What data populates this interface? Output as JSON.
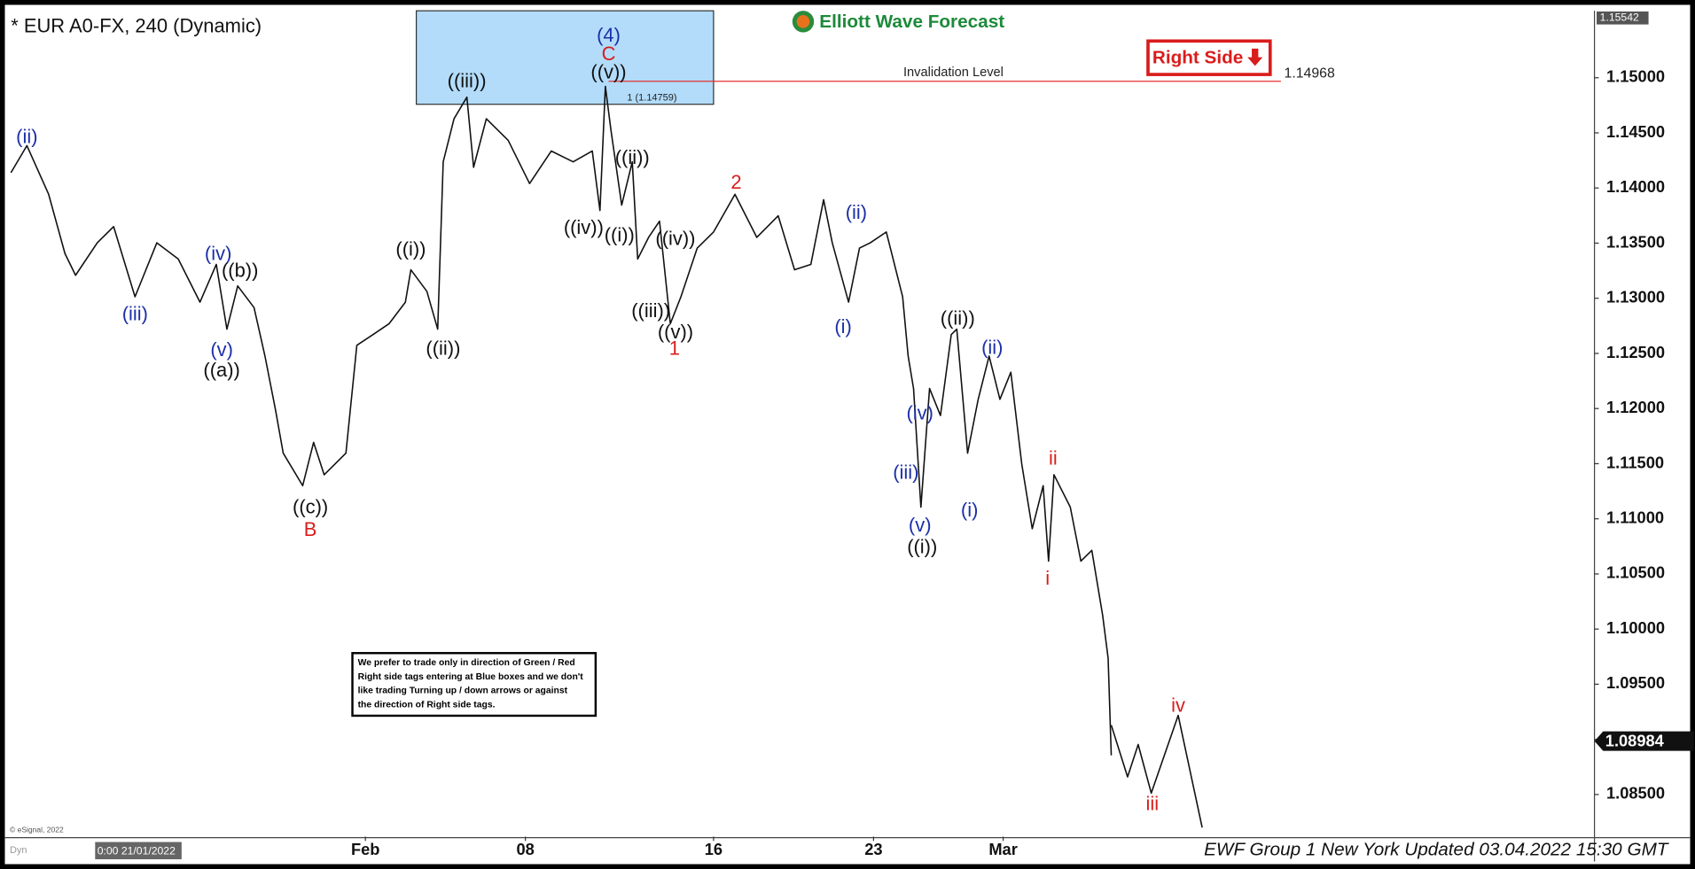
{
  "chart_data": {
    "type": "line",
    "title": "* EUR A0-FX, 240 (Dynamic)",
    "logo": "Elliott Wave Forecast",
    "right_side_tag": "Right Side",
    "footer": "EWF Group 1 New York Updated 03.04.2022 15:30 GMT",
    "copyright": "© eSignal, 2022",
    "cursor_time": "0:00 21/01/2022",
    "corner_label": "Dyn",
    "note": [
      "We prefer to trade only in direction of Green / Red",
      "Right side tags entering at Blue boxes and we don't",
      "like trading Turning up / down arrows or against",
      "the direction of Right side tags."
    ],
    "xlim": [
      0,
      49.56
    ],
    "xticks": [
      {
        "value": 11.15,
        "label": "Feb"
      },
      {
        "value": 16.15,
        "label": "08"
      },
      {
        "value": 22.03,
        "label": "16"
      },
      {
        "value": 27.03,
        "label": "23"
      },
      {
        "value": 31.08,
        "label": "Mar"
      }
    ],
    "ylim": [
      1.08118,
      1.15607
    ],
    "yticks": [
      {
        "value": 1.085,
        "label": "1.08500"
      },
      {
        "value": 1.09,
        "label": "1.09000"
      },
      {
        "value": 1.095,
        "label": "1.09500"
      },
      {
        "value": 1.1,
        "label": "1.10000"
      },
      {
        "value": 1.105,
        "label": "1.10500"
      },
      {
        "value": 1.11,
        "label": "1.11000"
      },
      {
        "value": 1.115,
        "label": "1.11500"
      },
      {
        "value": 1.12,
        "label": "1.12000"
      },
      {
        "value": 1.125,
        "label": "1.12500"
      },
      {
        "value": 1.13,
        "label": "1.13000"
      },
      {
        "value": 1.135,
        "label": "1.13500"
      },
      {
        "value": 1.14,
        "label": "1.14000"
      },
      {
        "value": 1.145,
        "label": "1.14500"
      },
      {
        "value": 1.15,
        "label": "1.15000"
      }
    ],
    "top_price": 1.15542,
    "last_price": 1.08984,
    "blue_box": {
      "x": [
        12.74,
        22.03
      ],
      "y": [
        1.14759,
        1.15607
      ],
      "color": "#b3dcfa",
      "label": "1 (1.14759)"
    },
    "invalidation": {
      "label": "Invalidation Level",
      "value": 1.14968,
      "x": [
        18.75,
        39.76
      ],
      "color": "#e03030"
    },
    "series": [
      {
        "color": "#111111",
        "x": [
          0.07,
          0.57,
          1.25,
          1.76,
          2.09,
          2.77,
          3.28,
          3.95,
          4.63,
          5.3,
          5.98,
          6.49,
          6.82,
          7.16,
          7.67,
          8.01,
          8.34,
          8.58,
          9.19,
          9.53,
          9.86,
          10.54,
          10.88,
          11.39,
          11.89,
          12.4,
          12.57,
          13.07,
          13.41,
          13.58,
          13.92,
          14.32,
          14.53,
          14.93,
          15.61,
          16.28,
          16.96,
          17.64,
          18.24,
          18.48,
          18.65,
          18.82,
          19.16,
          19.49,
          19.66,
          20.0,
          20.34,
          20.68,
          21.01,
          21.52,
          22.03,
          22.7,
          23.38,
          24.05,
          24.56,
          25.07,
          25.47,
          25.74,
          26.25,
          26.59,
          26.93,
          27.43,
          27.94,
          28.11,
          28.28,
          28.51,
          28.78,
          29.12,
          29.46,
          29.63,
          29.97,
          30.3,
          30.64,
          30.98,
          31.32,
          31.66,
          31.99,
          32.33,
          32.5,
          32.67,
          33.18,
          33.51,
          33.85,
          34.19,
          34.36,
          34.46
        ],
        "values": [
          1.14139,
          1.14384,
          1.13943,
          1.13405,
          1.13209,
          1.13503,
          1.1365,
          1.13014,
          1.13503,
          1.13356,
          1.12965,
          1.13307,
          1.1272,
          1.13112,
          1.12916,
          1.12476,
          1.11986,
          1.11595,
          1.11301,
          1.11693,
          1.11399,
          1.11595,
          1.12573,
          1.12671,
          1.12769,
          1.12965,
          1.13258,
          1.13063,
          1.1272,
          1.14237,
          1.14628,
          1.14824,
          1.14188,
          1.14628,
          1.14432,
          1.14041,
          1.14335,
          1.14237,
          1.14335,
          1.13796,
          1.14922,
          1.1453,
          1.13845,
          1.14237,
          1.13356,
          1.13552,
          1.13699,
          1.12769,
          1.13014,
          1.13455,
          1.13601,
          1.13943,
          1.13552,
          1.13748,
          1.13258,
          1.13307,
          1.13894,
          1.13503,
          1.12965,
          1.13455,
          1.13503,
          1.13601,
          1.13014,
          1.12476,
          1.12182,
          1.11106,
          1.12182,
          1.11937,
          1.12671,
          1.1272,
          1.11595,
          1.12084,
          1.12476,
          1.12084,
          1.12329,
          1.11497,
          1.1091,
          1.11301,
          1.10616,
          1.11399,
          1.11106,
          1.10616,
          1.10714,
          1.10127,
          1.09736,
          1.08855
        ]
      },
      {
        "color": "#111111",
        "x": [
          34.46,
          34.97,
          35.3,
          35.71,
          36.55,
          37.3
        ],
        "values": [
          1.09129,
          1.08659,
          1.08953,
          1.08513,
          1.09217,
          1.082
        ]
      }
    ],
    "wave_labels": [
      {
        "text": "(ii)",
        "x": 0.57,
        "y": 1.14452,
        "color": "#1c2fa8"
      },
      {
        "text": "(iii)",
        "x": 3.95,
        "y": 1.12847,
        "color": "#1c2fa8"
      },
      {
        "text": "(iv)",
        "x": 6.55,
        "y": 1.13395,
        "color": "#1c2fa8"
      },
      {
        "text": "((b))",
        "x": 7.23,
        "y": 1.13239,
        "color": "#111111"
      },
      {
        "text": "(v)",
        "x": 6.66,
        "y": 1.12524,
        "color": "#1c2fa8"
      },
      {
        "text": "((a))",
        "x": 6.66,
        "y": 1.12339,
        "color": "#111111"
      },
      {
        "text": "((c))",
        "x": 9.43,
        "y": 1.11096,
        "color": "#111111"
      },
      {
        "text": "B",
        "x": 9.43,
        "y": 1.1089,
        "color": "#d91c1c"
      },
      {
        "text": "((i))",
        "x": 12.57,
        "y": 1.13434,
        "color": "#111111"
      },
      {
        "text": "((ii))",
        "x": 13.58,
        "y": 1.12534,
        "color": "#111111"
      },
      {
        "text": "((iii))",
        "x": 14.32,
        "y": 1.14961,
        "color": "#111111"
      },
      {
        "text": "(4)",
        "x": 18.75,
        "y": 1.15372,
        "color": "#1c2fa8"
      },
      {
        "text": "C",
        "x": 18.75,
        "y": 1.15205,
        "color": "#d91c1c"
      },
      {
        "text": "((v))",
        "x": 18.75,
        "y": 1.15039,
        "color": "#111111"
      },
      {
        "text": "((ii))",
        "x": 19.49,
        "y": 1.14266,
        "color": "#111111"
      },
      {
        "text": "((iv))",
        "x": 17.97,
        "y": 1.1363,
        "color": "#111111"
      },
      {
        "text": "((i))",
        "x": 19.09,
        "y": 1.13562,
        "color": "#111111"
      },
      {
        "text": "((iv))",
        "x": 20.84,
        "y": 1.13532,
        "color": "#111111"
      },
      {
        "text": "((iii))",
        "x": 20.07,
        "y": 1.12877,
        "color": "#111111"
      },
      {
        "text": "((v))",
        "x": 20.84,
        "y": 1.12681,
        "color": "#111111"
      },
      {
        "text": "1",
        "x": 20.81,
        "y": 1.12534,
        "color": "#d91c1c"
      },
      {
        "text": "2",
        "x": 22.74,
        "y": 1.14041,
        "color": "#d91c1c"
      },
      {
        "text": "(ii)",
        "x": 26.49,
        "y": 1.13767,
        "color": "#1c2fa8"
      },
      {
        "text": "(i)",
        "x": 26.08,
        "y": 1.1273,
        "color": "#1c2fa8"
      },
      {
        "text": "((ii))",
        "x": 29.66,
        "y": 1.12808,
        "color": "#111111"
      },
      {
        "text": "(ii)",
        "x": 30.74,
        "y": 1.12544,
        "color": "#1c2fa8"
      },
      {
        "text": "(iv)",
        "x": 28.48,
        "y": 1.11947,
        "color": "#1c2fa8"
      },
      {
        "text": "(iii)",
        "x": 28.04,
        "y": 1.11409,
        "color": "#1c2fa8"
      },
      {
        "text": "(v)",
        "x": 28.48,
        "y": 1.1093,
        "color": "#1c2fa8"
      },
      {
        "text": "((i))",
        "x": 28.55,
        "y": 1.10734,
        "color": "#111111"
      },
      {
        "text": "(i)",
        "x": 30.03,
        "y": 1.11067,
        "color": "#1c2fa8"
      },
      {
        "text": "ii",
        "x": 32.64,
        "y": 1.11536,
        "color": "#d91c1c"
      },
      {
        "text": "i",
        "x": 32.47,
        "y": 1.1045,
        "color": "#d91c1c"
      },
      {
        "text": "iv",
        "x": 36.55,
        "y": 1.09295,
        "color": "#d91c1c"
      },
      {
        "text": "iii",
        "x": 35.74,
        "y": 1.08405,
        "color": "#d91c1c"
      }
    ]
  }
}
